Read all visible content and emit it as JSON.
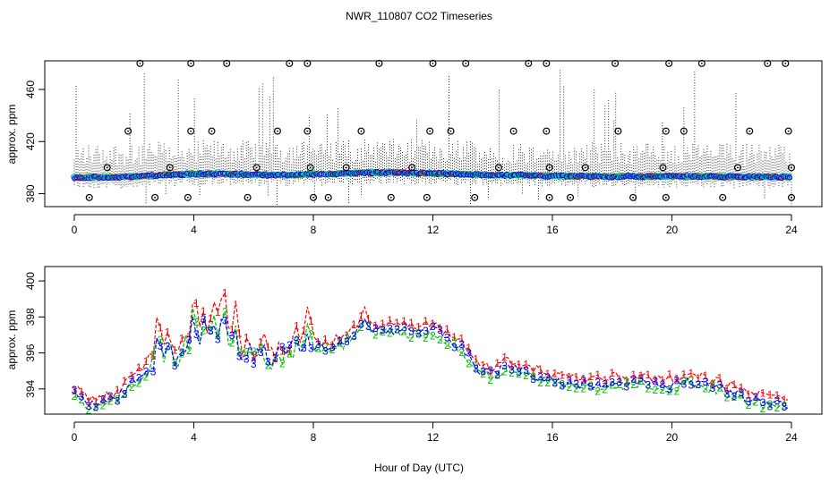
{
  "title": "NWR_110807  CO2 Timeseries",
  "xlabel": "Hour of Day (UTC)",
  "colors": {
    "primary": "#ff0000",
    "secondary": "#00c000",
    "tertiary": "#0000ff",
    "cyan": "#00cccc",
    "axis": "#000000",
    "range": "#000000"
  },
  "chart_data": [
    {
      "type": "scatter",
      "name": "top-panel",
      "xlabel": "",
      "ylabel": "approx. ppm",
      "xlim": [
        0,
        24
      ],
      "ylim": [
        370,
        482
      ],
      "xticks": [
        0,
        4,
        8,
        12,
        16,
        20,
        24
      ],
      "yticks": [
        380,
        420,
        460
      ],
      "baseline": [
        [
          0.0,
          392.5
        ],
        [
          1.0,
          392.6
        ],
        [
          2.0,
          393.0
        ],
        [
          3.0,
          394.5
        ],
        [
          4.0,
          395.0
        ],
        [
          5.0,
          395.2
        ],
        [
          6.0,
          394.5
        ],
        [
          7.0,
          394.2
        ],
        [
          8.0,
          394.8
        ],
        [
          9.0,
          395.5
        ],
        [
          10.0,
          396.0
        ],
        [
          11.0,
          396.0
        ],
        [
          12.0,
          395.6
        ],
        [
          13.0,
          394.8
        ],
        [
          14.0,
          394.3
        ],
        [
          15.0,
          394.0
        ],
        [
          16.0,
          393.5
        ],
        [
          17.0,
          393.3
        ],
        [
          18.0,
          393.2
        ],
        [
          19.0,
          393.2
        ],
        [
          20.0,
          393.3
        ],
        [
          21.0,
          393.2
        ],
        [
          22.0,
          392.9
        ],
        [
          23.0,
          392.8
        ],
        [
          24.0,
          392.8
        ]
      ],
      "flag_high": [
        2.2,
        3.9,
        5.1,
        7.2,
        7.8,
        10.2,
        12.0,
        13.1,
        15.2,
        15.8,
        18.1,
        19.9,
        21.0,
        23.2,
        23.8
      ],
      "flag_mid": [
        1.8,
        3.9,
        4.6,
        6.8,
        7.8,
        9.6,
        11.9,
        12.6,
        14.7,
        15.8,
        18.2,
        19.8,
        20.4,
        22.6,
        23.9
      ],
      "flag_low": [
        0.5,
        2.7,
        3.8,
        5.8,
        8.0,
        8.5,
        10.6,
        11.8,
        13.4,
        15.9,
        16.6,
        18.7,
        19.8,
        21.7,
        24.0
      ],
      "flag_near": [
        1.1,
        3.2,
        6.1,
        7.9,
        9.1,
        11.3,
        14.2,
        15.9,
        17.1,
        19.7,
        22.2,
        24.0
      ],
      "flag_values": {
        "high": 480,
        "mid": 428,
        "low": 377,
        "near": 400
      }
    },
    {
      "type": "line",
      "name": "bottom-panel",
      "xlabel": "Hour of Day (UTC)",
      "ylabel": "approx. ppm",
      "xlim": [
        0,
        24
      ],
      "ylim": [
        392.6,
        400.8
      ],
      "xticks": [
        0,
        4,
        8,
        12,
        16,
        20,
        24
      ],
      "yticks": [
        394,
        396,
        398,
        400
      ],
      "series": [
        {
          "name": "1",
          "color": "#ff0000",
          "offset": 0.35
        },
        {
          "name": "2",
          "color": "#00c000",
          "offset": -0.15
        },
        {
          "name": "3",
          "color": "#0000ff",
          "offset": 0.0
        }
      ],
      "anchors": [
        [
          0.0,
          393.7
        ],
        [
          0.5,
          393.1
        ],
        [
          1.0,
          393.2
        ],
        [
          1.5,
          393.6
        ],
        [
          2.0,
          394.5
        ],
        [
          2.5,
          395.2
        ],
        [
          3.0,
          395.6
        ],
        [
          3.5,
          395.8
        ],
        [
          4.0,
          396.5
        ],
        [
          4.5,
          396.8
        ],
        [
          5.0,
          396.4
        ],
        [
          5.5,
          395.7
        ],
        [
          6.0,
          395.8
        ],
        [
          6.5,
          395.7
        ],
        [
          7.0,
          396.0
        ],
        [
          7.5,
          396.2
        ],
        [
          8.0,
          396.4
        ],
        [
          8.5,
          396.2
        ],
        [
          9.0,
          396.6
        ],
        [
          9.5,
          397.2
        ],
        [
          10.0,
          397.3
        ],
        [
          10.5,
          397.3
        ],
        [
          11.0,
          397.2
        ],
        [
          11.5,
          397.1
        ],
        [
          12.0,
          397.3
        ],
        [
          12.5,
          396.8
        ],
        [
          13.0,
          396.2
        ],
        [
          13.5,
          395.1
        ],
        [
          14.0,
          394.8
        ],
        [
          14.5,
          395.3
        ],
        [
          15.0,
          395.0
        ],
        [
          15.5,
          394.7
        ],
        [
          16.0,
          394.5
        ],
        [
          16.5,
          394.3
        ],
        [
          17.0,
          394.3
        ],
        [
          17.5,
          394.2
        ],
        [
          18.0,
          394.4
        ],
        [
          18.5,
          394.3
        ],
        [
          19.0,
          394.4
        ],
        [
          19.5,
          394.3
        ],
        [
          20.0,
          394.2
        ],
        [
          20.5,
          394.4
        ],
        [
          21.0,
          394.3
        ],
        [
          21.5,
          394.1
        ],
        [
          22.0,
          393.8
        ],
        [
          22.5,
          393.5
        ],
        [
          23.0,
          393.3
        ],
        [
          23.5,
          393.2
        ],
        [
          24.0,
          393.1
        ]
      ],
      "spikes": [
        [
          2.8,
          397.6
        ],
        [
          3.2,
          396.8
        ],
        [
          3.7,
          396.9
        ],
        [
          4.0,
          399.0
        ],
        [
          4.3,
          398.0
        ],
        [
          4.7,
          399.2
        ],
        [
          5.0,
          400.0
        ],
        [
          5.4,
          398.2
        ],
        [
          5.8,
          396.5
        ],
        [
          6.3,
          396.6
        ],
        [
          7.4,
          396.7
        ],
        [
          7.8,
          398.0
        ],
        [
          9.7,
          398.2
        ]
      ]
    }
  ]
}
